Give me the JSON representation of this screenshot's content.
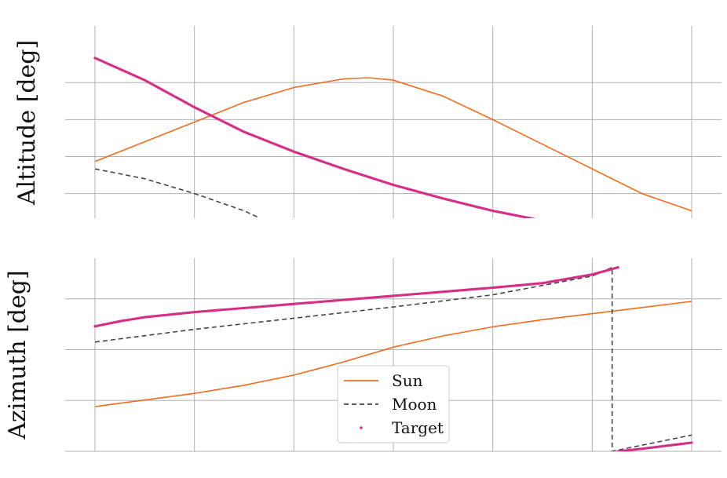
{
  "chart_data": [
    {
      "type": "line",
      "panel": "top",
      "ylabel": "Altitude [deg]",
      "xlabel": "",
      "grid": true,
      "xlim": [
        -0.3,
        6.3
      ],
      "ylim": [
        -10,
        68
      ],
      "series": [
        {
          "name": "Sun",
          "style": "solid",
          "color": "#f26b1d",
          "x": [
            0,
            0.5,
            1,
            1.5,
            2,
            2.5,
            2.75,
            3,
            3.5,
            4,
            4.5,
            5,
            5.5,
            6
          ],
          "y": [
            13,
            21,
            29,
            37,
            43,
            46.5,
            47,
            46,
            39.5,
            30,
            20,
            10,
            0,
            -7
          ]
        },
        {
          "name": "Moon",
          "style": "dashed",
          "color": "#444444",
          "x": [
            0,
            0.5,
            1,
            1.5,
            1.66
          ],
          "y": [
            10,
            6,
            0,
            -7,
            -10
          ]
        },
        {
          "name": "Target",
          "style": "points",
          "color": "#d62f86",
          "x": [
            0,
            0.5,
            1,
            1.5,
            2,
            2.5,
            3,
            3.5,
            4,
            4.5,
            5,
            5.5,
            6
          ],
          "y": [
            55,
            46,
            35,
            25,
            17,
            10,
            3.5,
            -2,
            -7,
            -11,
            -12.5,
            -13,
            -11
          ]
        }
      ]
    },
    {
      "type": "line",
      "panel": "bottom",
      "ylabel": "Azimuth [deg]",
      "xlabel": "",
      "grid": true,
      "xlim": [
        -0.3,
        6.3
      ],
      "ylim": [
        0,
        380
      ],
      "legend_position": "lower-center",
      "series": [
        {
          "name": "Sun",
          "style": "solid",
          "color": "#f26b1d",
          "x": [
            0,
            1,
            1.5,
            2,
            2.5,
            3,
            3.5,
            4,
            4.5,
            5,
            5.5,
            6
          ],
          "y": [
            88,
            114,
            130,
            150,
            176,
            205,
            227,
            245,
            259,
            271,
            283,
            295
          ]
        },
        {
          "name": "Moon",
          "style": "dashed",
          "color": "#444444",
          "x": [
            0,
            1,
            2,
            3,
            4,
            5,
            5.2,
            5.2,
            6
          ],
          "y": [
            215,
            240,
            262,
            284,
            308,
            345,
            362,
            0,
            32
          ]
        },
        {
          "name": "Target",
          "style": "points",
          "color": "#d62f86",
          "x": [
            0,
            0.25,
            0.5,
            1,
            1.5,
            2,
            2.5,
            3,
            3.5,
            4,
            4.5,
            5,
            5.26,
            5.26,
            5.5,
            6
          ],
          "y": [
            246,
            256,
            264,
            274,
            282,
            290,
            298,
            306,
            314,
            322,
            331,
            348,
            362,
            0,
            5,
            17
          ]
        }
      ]
    }
  ],
  "legend": [
    {
      "label": "Sun",
      "marker": "line",
      "color": "#f26b1d"
    },
    {
      "label": "Moon",
      "marker": "dashed",
      "color": "#444444"
    },
    {
      "label": "Target",
      "marker": "point",
      "color": "#d62f86"
    }
  ]
}
